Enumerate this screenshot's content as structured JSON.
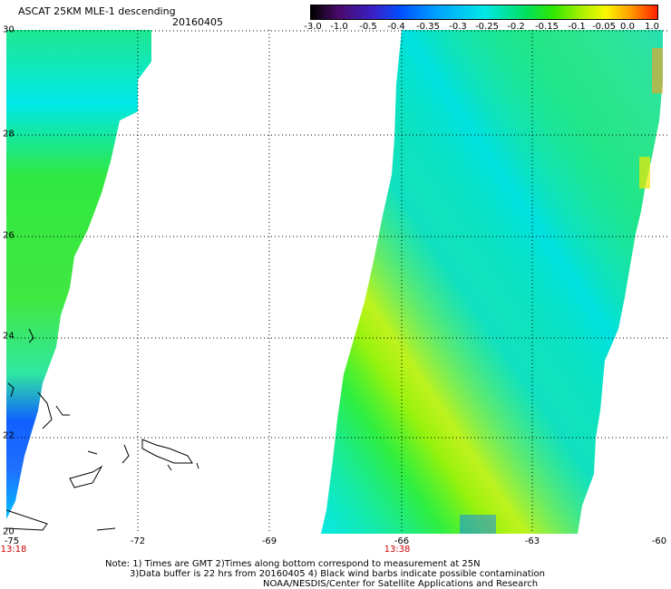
{
  "header": {
    "title": "ASCAT 25KM MLE-1 descending",
    "date": "20160405"
  },
  "colorbar": {
    "labels": [
      "-3.0",
      "-1.0",
      "-0.5",
      "-0.4",
      "-0.35",
      "-0.3",
      "-0.25",
      "-0.2",
      "-0.15",
      "-0.1",
      "-0.05",
      "0.0",
      "1.0"
    ]
  },
  "axes": {
    "lat_labels": [
      "30",
      "28",
      "26",
      "24",
      "22",
      "20"
    ],
    "lon_labels": [
      "-75",
      "-72",
      "-69",
      "-66",
      "-63",
      "-60"
    ],
    "lat_range": [
      20,
      30
    ],
    "lon_range": [
      -75,
      -60
    ],
    "grid": "dotted"
  },
  "pass_times": [
    "13:18",
    "13:38"
  ],
  "notes": [
    "Note: 1) Times are GMT 2)Times along bottom correspond to measurement at 25N",
    "3)Data buffer is 22 hrs from 20160405 4) Black wind barbs indicate possible contamination",
    "NOAA/NESDIS/Center for Satellite Applications and Research"
  ]
}
